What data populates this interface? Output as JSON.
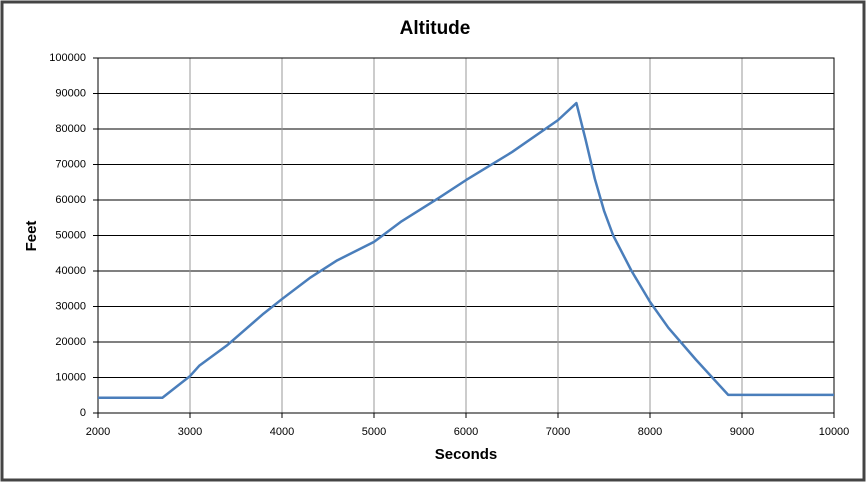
{
  "chart_data": {
    "type": "line",
    "title": "Altitude",
    "x_label": "Seconds",
    "y_label": "Feet",
    "x": [
      2000,
      2700,
      3000,
      3100,
      3400,
      3800,
      4000,
      4300,
      4600,
      5000,
      5300,
      5700,
      6000,
      6500,
      7000,
      7200,
      7300,
      7400,
      7500,
      7600,
      7800,
      8000,
      8200,
      8500,
      8850,
      10000
    ],
    "series": [
      {
        "name": "Altitude",
        "color": "#4a7ebb",
        "values": [
          4300,
          4300,
          10400,
          13300,
          19000,
          28000,
          32100,
          38000,
          43000,
          48200,
          54000,
          60500,
          65600,
          73500,
          82500,
          87300,
          77000,
          66000,
          57000,
          50000,
          40000,
          31300,
          24000,
          15000,
          5100,
          5100
        ]
      }
    ],
    "xlim": [
      2000,
      10000
    ],
    "xticks": [
      2000,
      3000,
      4000,
      5000,
      6000,
      7000,
      8000,
      9000,
      10000
    ],
    "ylim": [
      0,
      100000
    ],
    "yticks": [
      0,
      10000,
      20000,
      30000,
      40000,
      50000,
      60000,
      70000,
      80000,
      90000,
      100000
    ],
    "grid": true
  }
}
